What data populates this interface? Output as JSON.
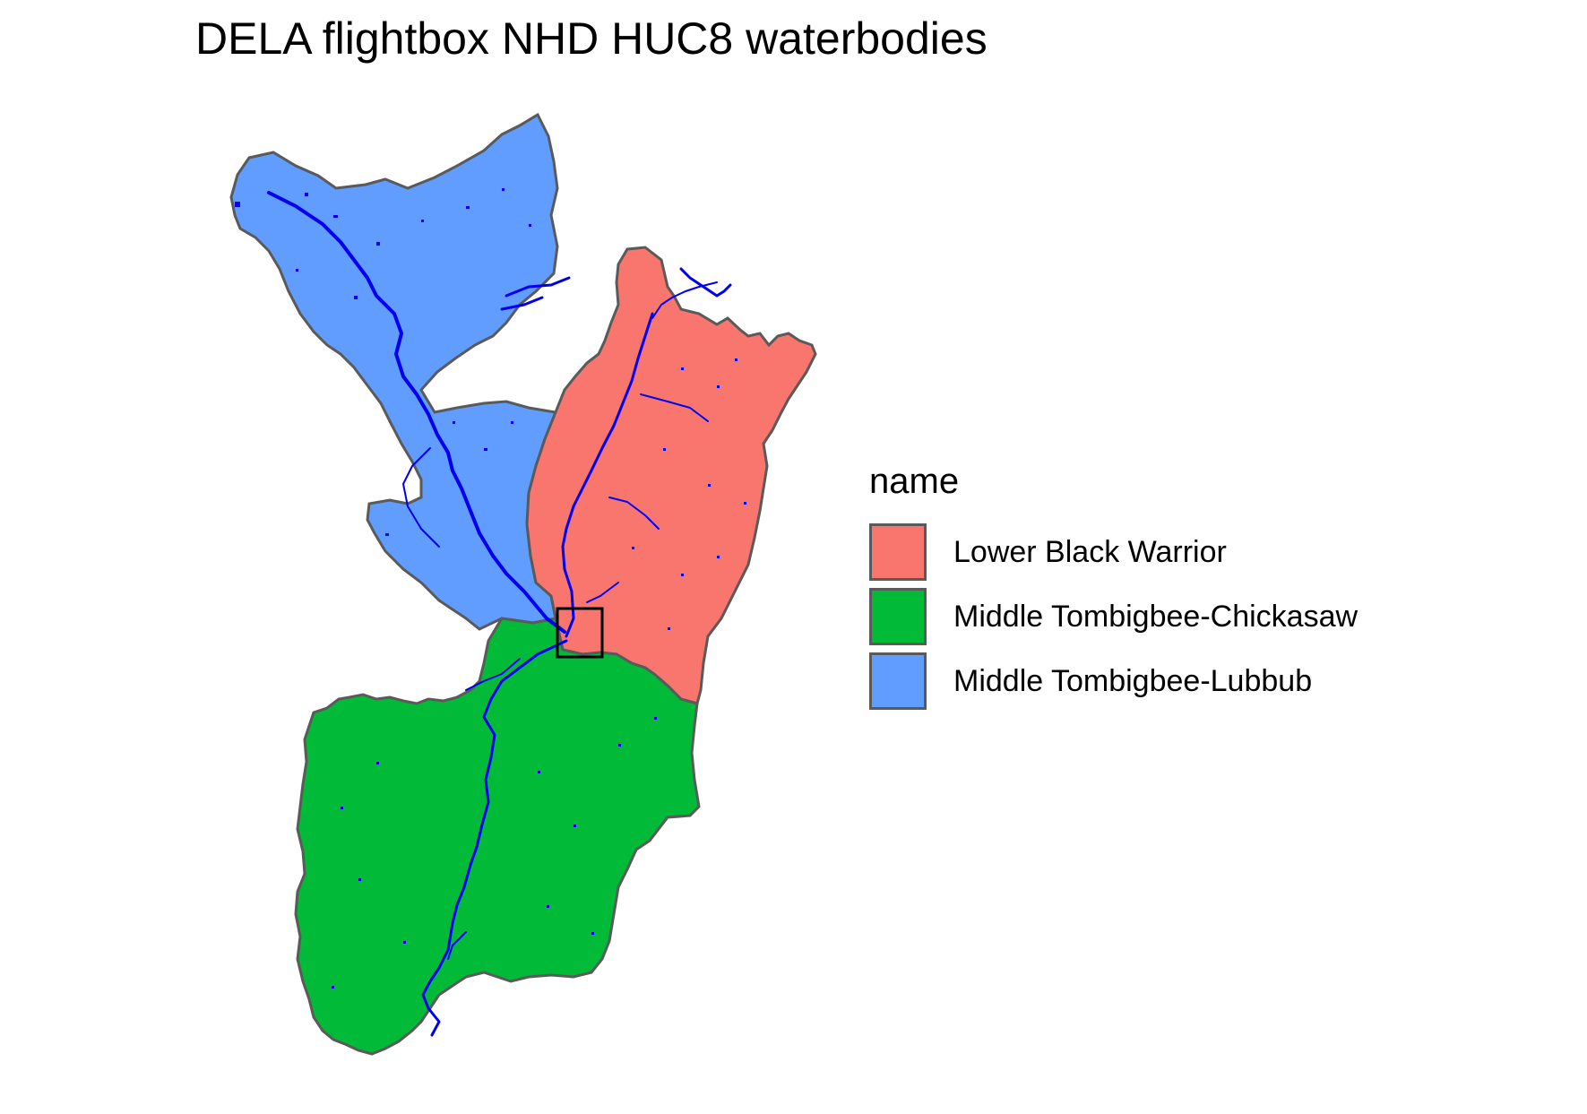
{
  "title": "DELA flightbox NHD HUC8 waterbodies",
  "legend": {
    "title": "name",
    "items": [
      {
        "label": "Lower Black Warrior",
        "color": "#F8766D"
      },
      {
        "label": "Middle Tombigbee-Chickasaw",
        "color": "#00BA38"
      },
      {
        "label": "Middle Tombigbee-Lubbub",
        "color": "#619CFF"
      }
    ]
  },
  "colors": {
    "waterbody": "#0000EE",
    "boundary": "#5a5a5a",
    "flightbox": "#000000"
  },
  "features": {
    "flightbox": "flightbox rectangle",
    "rivers": "NHD waterbodies"
  }
}
